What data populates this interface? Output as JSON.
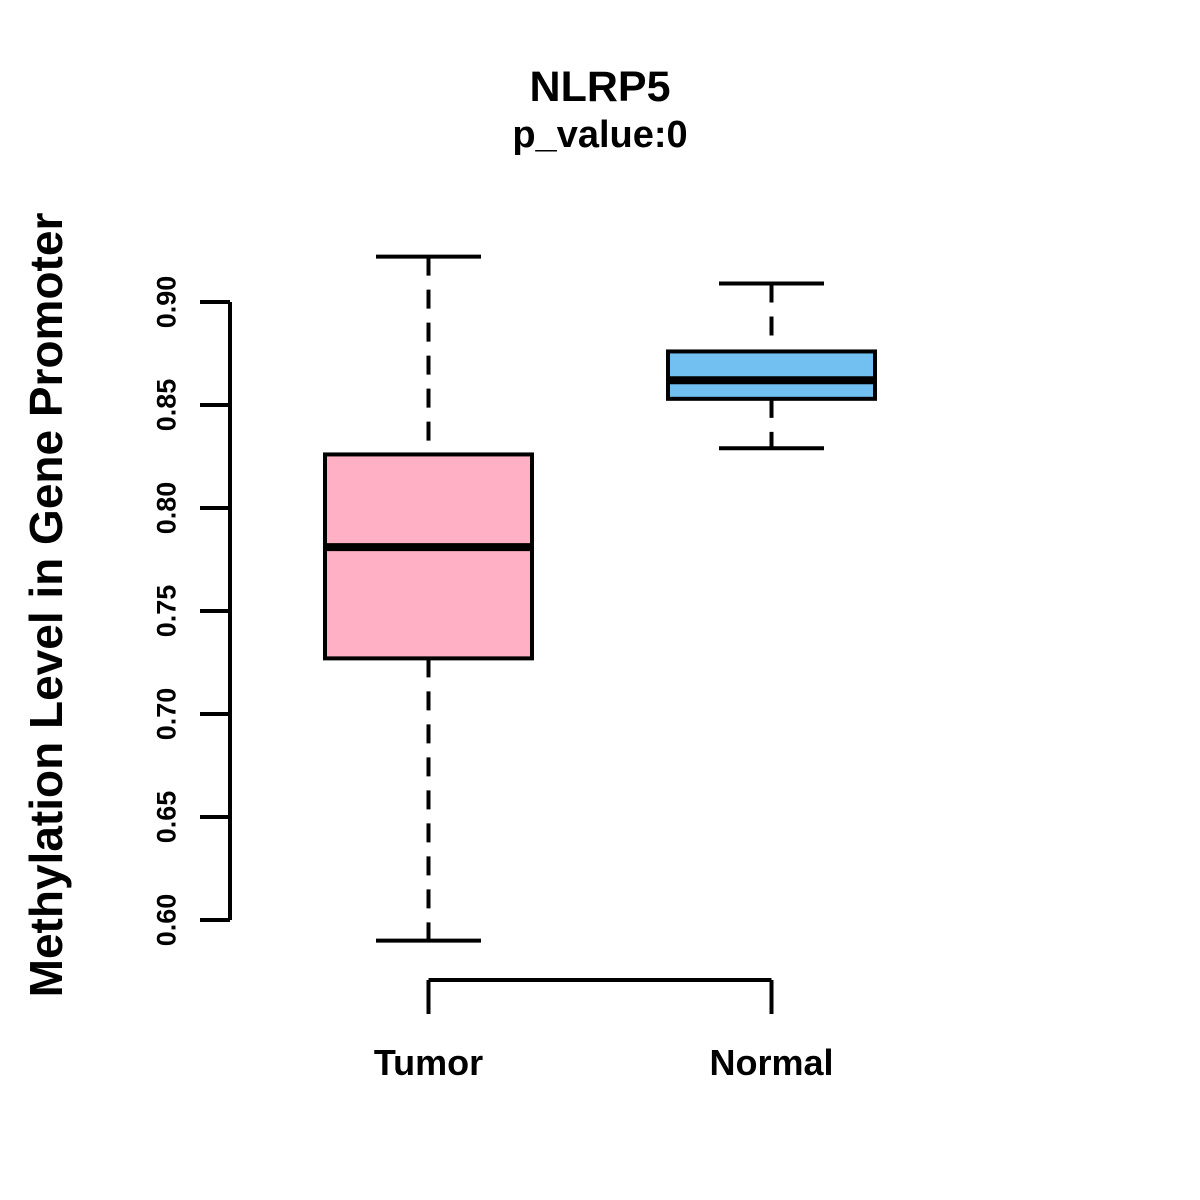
{
  "chart_data": {
    "type": "boxplot",
    "title": "NLRP5",
    "subtitle": "p_value:0",
    "ylabel": "Methylation Level in Gene Promoter",
    "xlabel": "",
    "categories": [
      "Tumor",
      "Normal"
    ],
    "series": [
      {
        "name": "Tumor",
        "fill": "#FFB0C4",
        "whisker_low": 0.59,
        "q1": 0.727,
        "median": 0.781,
        "q3": 0.826,
        "whisker_high": 0.922,
        "outliers": []
      },
      {
        "name": "Normal",
        "fill": "#72BFF2",
        "whisker_low": 0.829,
        "q1": 0.853,
        "median": 0.862,
        "q3": 0.876,
        "whisker_high": 0.909,
        "outliers": []
      }
    ],
    "y_axis": {
      "ticks": [
        0.6,
        0.65,
        0.7,
        0.75,
        0.8,
        0.85,
        0.9
      ],
      "tick_labels": [
        "0.60",
        "0.65",
        "0.70",
        "0.75",
        "0.80",
        "0.85",
        "0.90"
      ],
      "range_shown": [
        0.59,
        0.922
      ]
    },
    "grid": false,
    "legend": false,
    "stroke_color": "#000000",
    "background": "#FFFFFF"
  }
}
